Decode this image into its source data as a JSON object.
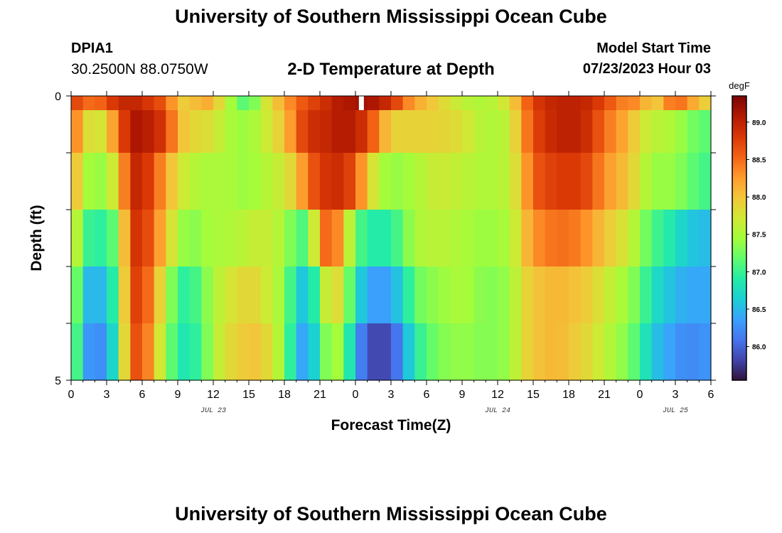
{
  "header": {
    "title": "University of Southern Mississippi Ocean Cube",
    "station_id": "DPIA1",
    "station_coords": "30.2500N  88.0750W",
    "subtitle": "2-D Temperature at Depth",
    "model_start_label": "Model Start Time",
    "model_start_value": "07/23/2023 Hour 03"
  },
  "footer": {
    "title": "University of Southern Mississippi Ocean Cube"
  },
  "colors": {
    "colormap": [
      "#30123b",
      "#4145ab",
      "#4675ed",
      "#39a2fc",
      "#1bcfd4",
      "#24eca6",
      "#61fc6c",
      "#a4fc3b",
      "#d1e834",
      "#f3c63a",
      "#fe9b2d",
      "#f36315",
      "#d93806",
      "#b11901",
      "#7a0402"
    ]
  },
  "chart_data": {
    "type": "heatmap",
    "title": "2-D Temperature at Depth",
    "xlabel": "Forecast Time(Z)",
    "ylabel": "Depth (ft)",
    "x_start_hour": 0,
    "x_end_hour": 54,
    "x_tick_labels": [
      "0",
      "3",
      "6",
      "9",
      "12",
      "15",
      "18",
      "21",
      "0",
      "3",
      "6",
      "9",
      "12",
      "15",
      "18",
      "21",
      "0",
      "3",
      "6"
    ],
    "date_labels": [
      {
        "text": "JUL 23",
        "hour": 12
      },
      {
        "text": "JUL 24",
        "hour": 36
      },
      {
        "text": "JUL 25",
        "hour": 51
      }
    ],
    "y_tick_labels": [
      {
        "text": "0",
        "depth": 0
      },
      {
        "text": "5",
        "depth": 5
      }
    ],
    "ylim": [
      0,
      5
    ],
    "colorbar": {
      "unit": "degF",
      "range": [
        85.55,
        89.35
      ],
      "ticks": [
        "86.0",
        "86.5",
        "87.0",
        "87.5",
        "88.0",
        "88.5",
        "89.0"
      ],
      "tick_values": [
        86.0,
        86.5,
        87.0,
        87.5,
        88.0,
        88.5,
        89.0
      ]
    },
    "depth_layers": [
      0,
      0.5,
      1.5,
      2.5,
      3.5,
      4.5
    ],
    "key_times": [
      0,
      1,
      2,
      3,
      4,
      5,
      6,
      8,
      9,
      10,
      11,
      12,
      13,
      15,
      16,
      18,
      19,
      20,
      21,
      22,
      23,
      24,
      25,
      26,
      27,
      28,
      29,
      31,
      33,
      35,
      37,
      38,
      39,
      41,
      43,
      44,
      45,
      47,
      48,
      49,
      51,
      52,
      54
    ],
    "temperature": [
      [
        88.8,
        88.6,
        88.4,
        88.7,
        88.9,
        89.0,
        88.9,
        88.6,
        88.0,
        87.9,
        88.2,
        88.1,
        87.6,
        87.0,
        87.6,
        88.2,
        88.5,
        88.7,
        88.8,
        89.0,
        89.1,
        89.1,
        89.2,
        89.0,
        88.9,
        88.5,
        88.2,
        87.9,
        87.6,
        87.5,
        87.8,
        88.3,
        88.8,
        89.0,
        89.0,
        88.9,
        88.7,
        88.3,
        88.4,
        87.8,
        88.6,
        88.3,
        87.8
      ],
      [
        88.6,
        88.0,
        87.6,
        87.9,
        88.5,
        89.1,
        89.1,
        88.8,
        88.1,
        87.9,
        87.8,
        87.8,
        87.5,
        87.4,
        87.6,
        88.0,
        88.5,
        88.9,
        88.9,
        89.0,
        89.1,
        89.0,
        88.8,
        88.3,
        87.9,
        87.9,
        87.9,
        87.9,
        87.8,
        87.5,
        87.6,
        88.2,
        88.7,
        89.0,
        89.0,
        88.8,
        88.5,
        88.1,
        87.8,
        87.6,
        87.5,
        87.3,
        87.1
      ],
      [
        88.3,
        87.6,
        87.3,
        87.5,
        87.9,
        88.9,
        89.0,
        88.2,
        87.8,
        87.6,
        87.5,
        87.5,
        87.5,
        87.4,
        87.5,
        87.7,
        88.0,
        88.5,
        88.8,
        88.9,
        88.9,
        88.6,
        88.0,
        87.5,
        87.4,
        87.4,
        87.5,
        87.7,
        87.6,
        87.5,
        87.6,
        88.0,
        88.6,
        88.8,
        88.8,
        88.6,
        88.3,
        88.0,
        87.7,
        87.4,
        87.4,
        87.2,
        87.0
      ],
      [
        88.0,
        87.1,
        86.9,
        87.0,
        87.3,
        88.8,
        88.9,
        88.0,
        87.5,
        87.3,
        87.4,
        87.5,
        87.5,
        87.6,
        87.7,
        87.5,
        87.1,
        87.1,
        88.3,
        88.7,
        88.0,
        87.2,
        86.9,
        86.9,
        86.9,
        87.2,
        87.5,
        87.6,
        87.5,
        87.4,
        87.5,
        87.9,
        88.3,
        88.5,
        88.4,
        88.2,
        88.0,
        87.7,
        87.4,
        87.1,
        86.8,
        86.6,
        86.5
      ],
      [
        87.8,
        86.6,
        86.4,
        86.6,
        87.2,
        88.7,
        88.8,
        87.6,
        87.0,
        86.9,
        87.2,
        87.5,
        87.7,
        87.9,
        87.8,
        87.4,
        86.7,
        86.5,
        87.3,
        88.0,
        87.6,
        86.8,
        86.4,
        86.3,
        86.4,
        86.7,
        87.2,
        87.4,
        87.5,
        87.3,
        87.4,
        87.8,
        88.0,
        88.1,
        88.0,
        87.9,
        87.7,
        87.4,
        87.2,
        86.8,
        86.5,
        86.4,
        86.4
      ],
      [
        87.7,
        86.4,
        86.2,
        86.3,
        87.1,
        88.6,
        88.7,
        87.4,
        86.9,
        86.8,
        87.1,
        87.5,
        87.8,
        88.0,
        88.0,
        87.4,
        86.5,
        86.3,
        87.0,
        87.6,
        87.3,
        86.4,
        85.9,
        85.8,
        85.9,
        86.3,
        86.9,
        87.3,
        87.4,
        87.3,
        87.4,
        87.8,
        88.0,
        88.1,
        87.9,
        87.8,
        87.6,
        87.3,
        87.0,
        86.6,
        86.3,
        86.2,
        86.3
      ]
    ],
    "missing_cells": [
      {
        "time": 24.5,
        "layer": 0
      }
    ]
  }
}
